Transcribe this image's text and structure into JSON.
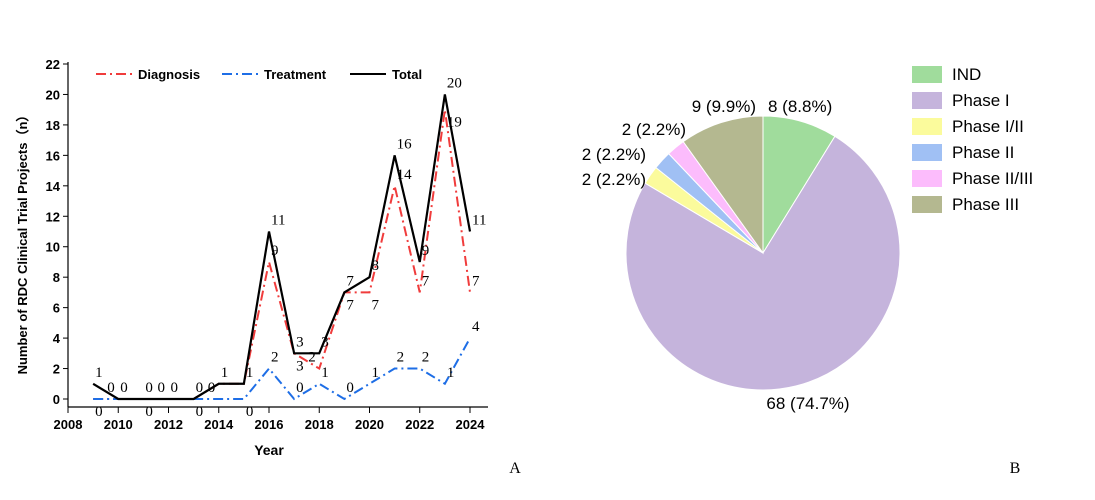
{
  "chart_data": [
    {
      "type": "line",
      "panel_label": "A",
      "xlabel": "Year",
      "ylabel": "Number of RDC Clinical Trial Projects（n）",
      "xlim": [
        2008,
        2024
      ],
      "ylim": [
        0,
        22
      ],
      "xticks": [
        2008,
        2010,
        2012,
        2014,
        2016,
        2018,
        2020,
        2022,
        2024
      ],
      "yticks": [
        0,
        2,
        4,
        6,
        8,
        10,
        12,
        14,
        16,
        18,
        20,
        22
      ],
      "legend_placement": "top",
      "x": [
        2009,
        2010,
        2011,
        2012,
        2013,
        2014,
        2015,
        2016,
        2017,
        2018,
        2019,
        2020,
        2021,
        2022,
        2023,
        2024
      ],
      "series": [
        {
          "name": "Diagnosis",
          "color": "#f03c3c",
          "style": "dash-dot",
          "values": [
            0,
            0,
            0,
            0,
            0,
            1,
            1,
            9,
            3,
            2,
            7,
            7,
            14,
            7,
            19,
            7
          ]
        },
        {
          "name": "Treatment",
          "color": "#1e6ee6",
          "style": "dash-dot",
          "values": [
            0,
            0,
            0,
            0,
            0,
            0,
            0,
            2,
            0,
            1,
            0,
            1,
            2,
            2,
            1,
            4
          ]
        },
        {
          "name": "Total",
          "color": "#000000",
          "style": "solid",
          "values": [
            1,
            0,
            0,
            0,
            0,
            1,
            1,
            11,
            3,
            3,
            7,
            8,
            16,
            9,
            20,
            11
          ]
        }
      ]
    },
    {
      "type": "pie",
      "panel_label": "B",
      "legend_placement": "right",
      "slices": [
        {
          "label": "IND",
          "value": 8,
          "data_label": "8 (8.8%)",
          "color": "#a0dc9c"
        },
        {
          "label": "Phase I",
          "value": 68,
          "data_label": "68 (74.7%)",
          "color": "#c5b4dc"
        },
        {
          "label": "Phase I/II",
          "value": 2,
          "data_label": "2 (2.2%)",
          "color": "#fbfb9c"
        },
        {
          "label": "Phase II",
          "value": 2,
          "data_label": "2 (2.2%)",
          "color": "#a0c0f4"
        },
        {
          "label": "Phase II/III",
          "value": 2,
          "data_label": "2 (2.2%)",
          "color": "#fcbcfc"
        },
        {
          "label": "Phase III",
          "value": 9,
          "data_label": "9 (9.9%)",
          "color": "#b4b890"
        }
      ]
    }
  ]
}
